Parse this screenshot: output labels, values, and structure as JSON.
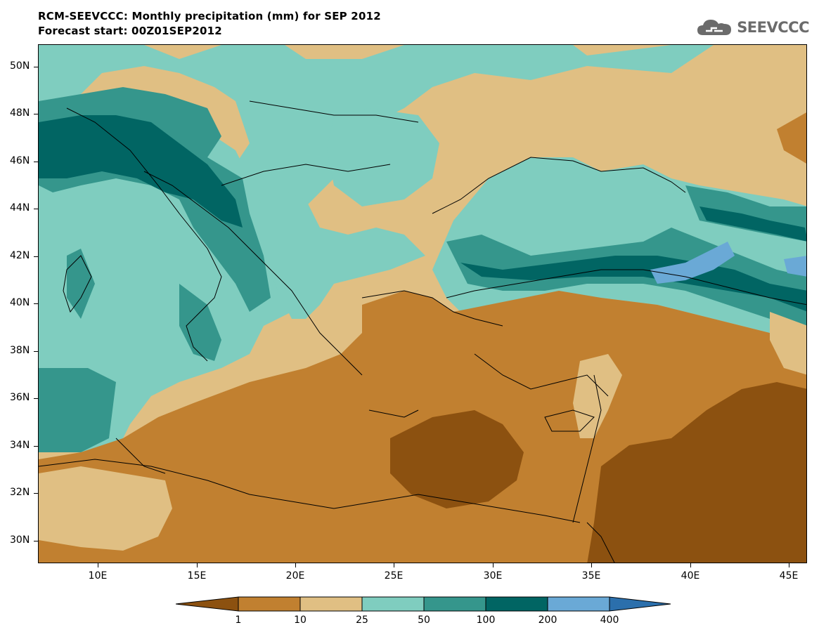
{
  "header": {
    "title_line1": "RCM-SEEVCCC: Monthly precipitation (mm) for SEP 2012",
    "title_line2": "Forecast start: 00Z01SEP2012"
  },
  "logo": {
    "text": "SEEVCCC",
    "icon": "cloud-logo-icon"
  },
  "map": {
    "y_axis_labels": [
      "50N",
      "48N",
      "46N",
      "44N",
      "42N",
      "40N",
      "38N",
      "36N",
      "34N",
      "32N",
      "30N"
    ],
    "x_axis_labels": [
      "10E",
      "15E",
      "20E",
      "25E",
      "30E",
      "35E",
      "40E",
      "45E"
    ]
  },
  "legend": {
    "labels": [
      "1",
      "10",
      "25",
      "50",
      "100",
      "200",
      "400"
    ],
    "colors": [
      "#8c5110",
      "#c18030",
      "#e0bf83",
      "#7fcdbf",
      "#35968c",
      "#016563",
      "#6aa9d6",
      "#2b6fac"
    ]
  }
}
